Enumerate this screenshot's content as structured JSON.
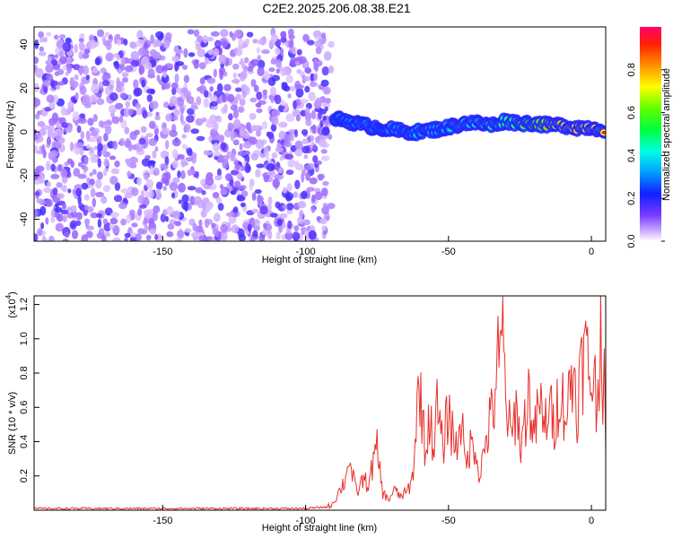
{
  "title": "C2E2.2025.206.08.38.E21",
  "chart_data": [
    {
      "type": "heatmap",
      "xlabel": "Height of straight line (km)",
      "ylabel": "Frequency (Hz)",
      "xlim": [
        -195,
        5
      ],
      "ylim": [
        -50,
        48
      ],
      "x_ticks": [
        -150,
        -100,
        -50,
        0
      ],
      "y_ticks": [
        -40,
        -20,
        0,
        20,
        40
      ],
      "colorbar": {
        "label": "Normalized spectral amplitude",
        "range": [
          0,
          1
        ],
        "ticks": [
          "0.0",
          "0.2",
          "0.4",
          "0.6",
          "0.8"
        ]
      },
      "noise_region": {
        "x": [
          -195,
          -91
        ],
        "y": [
          -50,
          46
        ],
        "amplitude": [
          0.05,
          0.2
        ]
      },
      "signal_band": [
        {
          "x": -90,
          "f": 6,
          "amp": 0.35
        },
        {
          "x": -85,
          "f": 5,
          "amp": 0.4
        },
        {
          "x": -80,
          "f": 3,
          "amp": 0.45
        },
        {
          "x": -75,
          "f": 2,
          "amp": 0.4
        },
        {
          "x": -70,
          "f": 1,
          "amp": 0.45
        },
        {
          "x": -65,
          "f": 0,
          "amp": 0.4
        },
        {
          "x": -60,
          "f": 0,
          "amp": 0.45
        },
        {
          "x": -55,
          "f": 1,
          "amp": 0.4
        },
        {
          "x": -50,
          "f": 2,
          "amp": 0.45
        },
        {
          "x": -45,
          "f": 4,
          "amp": 0.5
        },
        {
          "x": -40,
          "f": 4,
          "amp": 0.55
        },
        {
          "x": -35,
          "f": 3,
          "amp": 0.6
        },
        {
          "x": -30,
          "f": 5,
          "amp": 0.6
        },
        {
          "x": -25,
          "f": 4,
          "amp": 0.65
        },
        {
          "x": -20,
          "f": 4,
          "amp": 0.75
        },
        {
          "x": -15,
          "f": 3,
          "amp": 0.85
        },
        {
          "x": -10,
          "f": 3,
          "amp": 0.95
        },
        {
          "x": -5,
          "f": 2,
          "amp": 0.98
        },
        {
          "x": 0,
          "f": 2,
          "amp": 0.98
        },
        {
          "x": 5,
          "f": 1,
          "amp": 0.95
        }
      ]
    },
    {
      "type": "line",
      "xlabel": "Height of straight line (km)",
      "ylabel": "SNR (10 * v/v)",
      "y_exponent_label": "(x10",
      "y_exponent": "4",
      "y_exponent_close": ")",
      "xlim": [
        -195,
        5
      ],
      "ylim": [
        0,
        1.25
      ],
      "x_ticks": [
        -150,
        -100,
        -50,
        0
      ],
      "y_ticks": [
        0.2,
        0.4,
        0.6,
        0.8,
        1.0,
        1.2
      ],
      "series": [
        {
          "color": "#e8312c",
          "points": [
            [
              -195,
              0.01
            ],
            [
              -170,
              0.01
            ],
            [
              -140,
              0.01
            ],
            [
              -120,
              0.01
            ],
            [
              -100,
              0.01
            ],
            [
              -92,
              0.02
            ],
            [
              -90,
              0.05
            ],
            [
              -88,
              0.12
            ],
            [
              -86,
              0.18
            ],
            [
              -85,
              0.33
            ],
            [
              -84,
              0.22
            ],
            [
              -82,
              0.1
            ],
            [
              -80,
              0.18
            ],
            [
              -78,
              0.15
            ],
            [
              -76,
              0.3
            ],
            [
              -75,
              0.35
            ],
            [
              -73,
              0.1
            ],
            [
              -71,
              0.06
            ],
            [
              -69,
              0.12
            ],
            [
              -67,
              0.08
            ],
            [
              -65,
              0.1
            ],
            [
              -63,
              0.15
            ],
            [
              -62,
              0.3
            ],
            [
              -61,
              0.6
            ],
            [
              -60,
              0.73
            ],
            [
              -58,
              0.3
            ],
            [
              -57,
              0.55
            ],
            [
              -55,
              0.38
            ],
            [
              -54,
              0.6
            ],
            [
              -52,
              0.35
            ],
            [
              -50,
              0.6
            ],
            [
              -49,
              0.48
            ],
            [
              -47,
              0.35
            ],
            [
              -46,
              0.6
            ],
            [
              -44,
              0.25
            ],
            [
              -43,
              0.35
            ],
            [
              -41,
              0.4
            ],
            [
              -39,
              0.2
            ],
            [
              -37,
              0.4
            ],
            [
              -35,
              0.55
            ],
            [
              -34,
              0.62
            ],
            [
              -33,
              0.9
            ],
            [
              -32,
              0.82
            ],
            [
              -31,
              1.04
            ],
            [
              -30,
              0.65
            ],
            [
              -28,
              0.4
            ],
            [
              -26,
              0.65
            ],
            [
              -25,
              0.35
            ],
            [
              -23,
              0.55
            ],
            [
              -22,
              0.68
            ],
            [
              -20,
              0.42
            ],
            [
              -18,
              0.66
            ],
            [
              -17,
              0.45
            ],
            [
              -15,
              0.6
            ],
            [
              -13,
              0.5
            ],
            [
              -11,
              0.72
            ],
            [
              -9,
              0.55
            ],
            [
              -7,
              0.75
            ],
            [
              -6,
              0.8
            ],
            [
              -5,
              0.6
            ],
            [
              -4,
              0.78
            ],
            [
              -3,
              0.85
            ],
            [
              -2,
              0.95
            ],
            [
              -1,
              0.8
            ],
            [
              0,
              0.75
            ],
            [
              1,
              0.8
            ],
            [
              2,
              0.55
            ],
            [
              3,
              1.05
            ],
            [
              3.5,
              1.25
            ],
            [
              4,
              0.5
            ],
            [
              4.5,
              0.7
            ],
            [
              5,
              0.35
            ]
          ]
        }
      ]
    }
  ]
}
